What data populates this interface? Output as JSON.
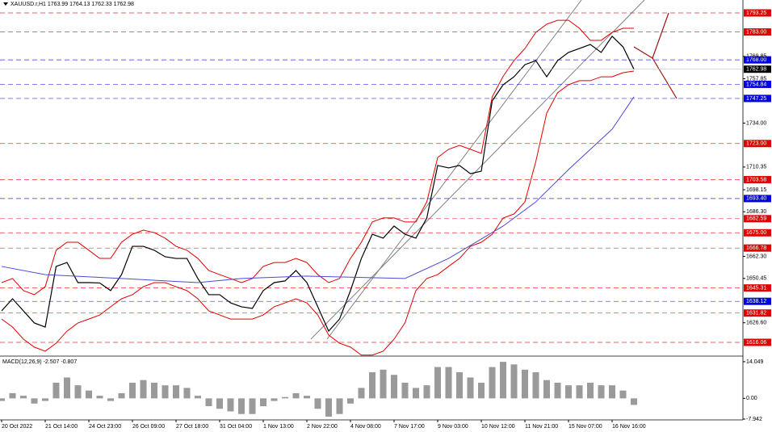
{
  "chart_data": {
    "type": "line",
    "title": "XAUUSD.r,H1  1763.99 1764.13 1762.33 1762.98",
    "categories": [
      "20 Oct 2022",
      null,
      null,
      null,
      "21 Oct 14:00",
      null,
      null,
      null,
      "24 Oct 23:00",
      null,
      null,
      null,
      "26 Oct 09:00",
      null,
      null,
      null,
      "27 Oct 18:00",
      null,
      null,
      null,
      "31 Oct 04:00",
      null,
      null,
      null,
      "1 Nov 13:00",
      null,
      null,
      null,
      "2 Nov 22:00",
      null,
      null,
      null,
      "4 Nov 08:00",
      null,
      null,
      null,
      "7 Nov 17:00",
      null,
      null,
      null,
      "9 Nov 03:00",
      null,
      null,
      null,
      "10 Nov 12:00",
      null,
      null,
      null,
      "11 Nov 21:00",
      null,
      null,
      null,
      "15 Nov 07:00",
      null,
      null,
      null,
      "16 Nov 16:00",
      null,
      null
    ],
    "series": [
      {
        "color": "#000000",
        "values": [
          1633.0,
          1639.5,
          1633.0,
          1626.5,
          1624.3,
          1656.9,
          1659.0,
          1648.2,
          1648.2,
          1648.0,
          1643.9,
          1652.5,
          1667.7,
          1667.7,
          1665.6,
          1662.1,
          1661.2,
          1661.2,
          1650.4,
          1641.7,
          1641.7,
          1637.3,
          1635.2,
          1634.3,
          1643.9,
          1648.2,
          1649.1,
          1654.7,
          1648.2,
          1635.2,
          1622.1,
          1628.6,
          1643.9,
          1661.2,
          1674.2,
          1672.1,
          1678.6,
          1674.2,
          1672.1,
          1682.9,
          1711.2,
          1709.9,
          1711.2,
          1706.8,
          1708.1,
          1745.9,
          1754.6,
          1758.9,
          1765.4,
          1767.6,
          1758.9,
          1767.6,
          1772.0,
          1774.1,
          1776.3,
          1772.0,
          1780.7,
          1775.0,
          1762.98
        ]
      },
      {
        "color": "#e00000",
        "values": [
          1648.2,
          1650.4,
          1643.9,
          1641.7,
          1646.0,
          1665.6,
          1669.9,
          1669.9,
          1665.6,
          1661.2,
          1661.2,
          1669.9,
          1674.2,
          1676.4,
          1675.1,
          1672.1,
          1667.7,
          1665.6,
          1661.2,
          1654.7,
          1652.5,
          1650.4,
          1648.2,
          1650.4,
          1656.9,
          1659.0,
          1659.0,
          1661.2,
          1659.0,
          1652.5,
          1648.2,
          1650.4,
          1661.2,
          1669.9,
          1680.8,
          1683.0,
          1683.0,
          1680.8,
          1680.8,
          1691.6,
          1715.5,
          1719.9,
          1722.0,
          1719.9,
          1717.7,
          1748.1,
          1759.1,
          1767.6,
          1774.1,
          1782.8,
          1787.2,
          1789.3,
          1789.3,
          1785.0,
          1778.5,
          1778.5,
          1782.8,
          1785.0,
          1785.0
        ]
      },
      {
        "color": "#e00000",
        "values": [
          1628.6,
          1624.3,
          1617.8,
          1613.5,
          1611.3,
          1615.6,
          1622.1,
          1626.5,
          1628.6,
          1630.8,
          1635.2,
          1639.5,
          1641.7,
          1646.0,
          1648.2,
          1648.2,
          1646.0,
          1643.9,
          1639.5,
          1633.0,
          1630.8,
          1628.6,
          1628.6,
          1628.6,
          1630.8,
          1635.2,
          1637.3,
          1639.5,
          1637.3,
          1630.8,
          1620.0,
          1615.6,
          1613.5,
          1609.2,
          1609.2,
          1611.3,
          1617.8,
          1626.5,
          1643.9,
          1650.4,
          1652.5,
          1656.9,
          1661.2,
          1667.7,
          1669.9,
          1674.2,
          1682.9,
          1685.1,
          1691.6,
          1713.3,
          1739.4,
          1750.3,
          1754.6,
          1756.8,
          1756.8,
          1758.9,
          1758.9,
          1761.1,
          1762.0
        ]
      },
      {
        "color": "#4a4ad8",
        "x": [
          0,
          4,
          11,
          18,
          22,
          28,
          37,
          41,
          46,
          49,
          52,
          56,
          58
        ],
        "values": [
          1656.9,
          1652.5,
          1650.4,
          1648.2,
          1650.4,
          1651.7,
          1650.4,
          1661.2,
          1678.6,
          1691.6,
          1709.0,
          1730.7,
          1748.1
        ]
      }
    ],
    "ylim": [
      1609.1,
      1800.2
    ],
    "yticks": [
      {
        "value": 1769.85,
        "label": "1769.85"
      },
      {
        "value": 1757.85,
        "label": "1757.85"
      },
      {
        "value": 1734.0,
        "label": "1734.00"
      },
      {
        "value": 1710.35,
        "label": "1710.35"
      },
      {
        "value": 1698.15,
        "label": "1698.15"
      },
      {
        "value": 1686.3,
        "label": "1686.30"
      },
      {
        "value": 1662.3,
        "label": "1662.30"
      },
      {
        "value": 1650.45,
        "label": "1650.45"
      },
      {
        "value": 1626.6,
        "label": "1626.60"
      }
    ],
    "levels": [
      {
        "value": 1793.25,
        "label": "1793.25",
        "color": "#e00000"
      },
      {
        "value": 1783.0,
        "label": "1783.00",
        "color": "#e00000"
      },
      {
        "value": 1768.0,
        "label": "1768.00",
        "color": "#0000e0"
      },
      {
        "value": 1754.84,
        "label": "1754.84",
        "color": "#0000e0"
      },
      {
        "value": 1747.25,
        "label": "1747.25",
        "color": "#0000e0"
      },
      {
        "value": 1723.0,
        "label": "1723.00",
        "color": "#e00000"
      },
      {
        "value": 1703.58,
        "label": "1703.58",
        "color": "#e00000"
      },
      {
        "value": 1693.4,
        "label": "1693.40",
        "color": "#0000e0"
      },
      {
        "value": 1682.59,
        "label": "1682.59",
        "color": "#e00000"
      },
      {
        "value": 1675.0,
        "label": "1675.00",
        "color": "#e00000"
      },
      {
        "value": 1666.78,
        "label": "1666.78",
        "color": "#e00000"
      },
      {
        "value": 1645.31,
        "label": "1645.31",
        "color": "#e00000"
      },
      {
        "value": 1638.12,
        "label": "1638.12",
        "color": "#0000e0"
      },
      {
        "value": 1631.82,
        "label": "1631.82",
        "color": "#e00000"
      },
      {
        "value": 1616.06,
        "label": "1616.06",
        "color": "#e00000"
      }
    ],
    "current_price": 1762.98,
    "macd": {
      "title": "MACD(12,26,9) -2.507 -0.807",
      "color": "#9a9a9a",
      "ylim": [
        -8.25,
        15.88
      ],
      "yticks": [
        14.049,
        {
          "value": 0,
          "label": "0.00"
        },
        -7.942
      ],
      "values": [
        -1,
        2,
        1,
        -2,
        -1,
        6,
        8,
        5,
        3,
        1,
        -1,
        2,
        6,
        7,
        6,
        5,
        5,
        4,
        1,
        -3,
        -4,
        -5,
        -6,
        -6,
        -3,
        -1,
        0.5,
        2,
        1,
        -4,
        -7,
        -6,
        -2,
        4,
        10,
        11,
        9,
        6,
        4,
        5,
        12,
        12,
        10,
        8,
        6,
        12,
        14,
        13,
        11,
        10,
        7,
        6,
        5,
        5,
        6,
        5,
        5,
        3,
        -2.507
      ]
    }
  }
}
